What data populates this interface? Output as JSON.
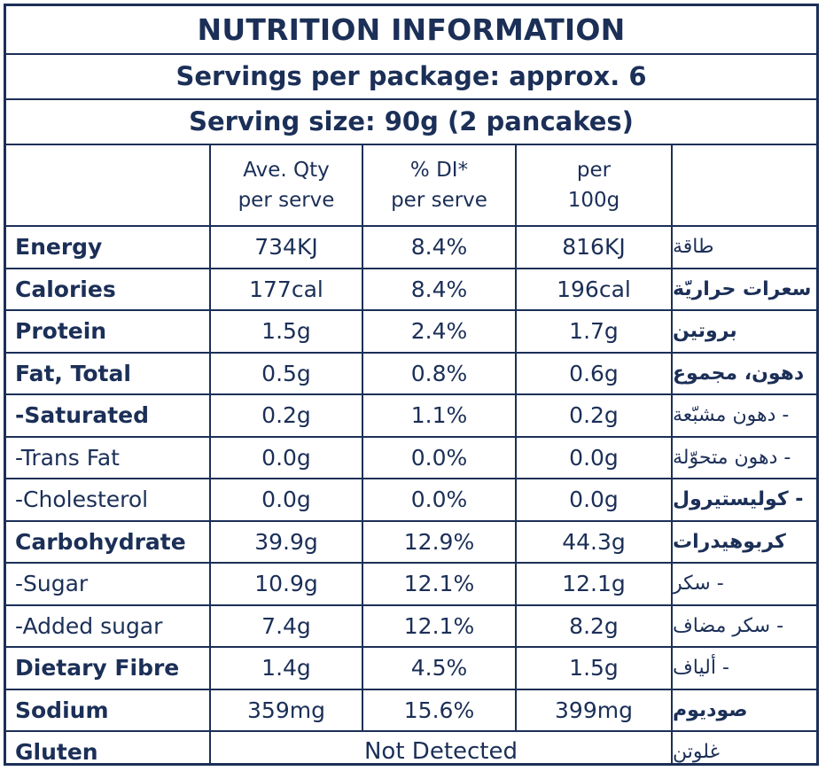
{
  "title": "NUTRITION INFORMATION",
  "servings_per_package": "Servings per package: approx. 6",
  "serving_size": "Serving size:  90g (2 pancakes)",
  "columns": {
    "ave_qty": [
      "Ave. Qty",
      "per serve"
    ],
    "di": [
      "% DI*",
      "per serve"
    ],
    "per100": [
      "per",
      "100g"
    ]
  },
  "rows": [
    {
      "name": "Energy",
      "bold": true,
      "qty": "734KJ",
      "di": "8.4%",
      "per100": "816KJ",
      "arabic": "طاقة",
      "ar_bold": false
    },
    {
      "name": "Calories",
      "bold": true,
      "qty": "177cal",
      "di": "8.4%",
      "per100": "196cal",
      "arabic": "سعرات حراريّة",
      "ar_bold": true
    },
    {
      "name": "Protein",
      "bold": true,
      "qty": "1.5g",
      "di": "2.4%",
      "per100": "1.7g",
      "arabic": "بروتين",
      "ar_bold": true
    },
    {
      "name": "Fat, Total",
      "bold": true,
      "qty": "0.5g",
      "di": "0.8%",
      "per100": "0.6g",
      "arabic": "دهون، مجموع",
      "ar_bold": true
    },
    {
      "name": "-Saturated",
      "bold": true,
      "qty": "0.2g",
      "di": "1.1%",
      "per100": "0.2g",
      "arabic": "- دهون مشبّعة",
      "ar_bold": false
    },
    {
      "name": "-Trans Fat",
      "bold": false,
      "qty": "0.0g",
      "di": "0.0%",
      "per100": "0.0g",
      "arabic": "- دهون متحوّلة",
      "ar_bold": false
    },
    {
      "name": "-Cholesterol",
      "bold": false,
      "qty": "0.0g",
      "di": "0.0%",
      "per100": "0.0g",
      "arabic": "- كوليستيرول",
      "ar_bold": true
    },
    {
      "name": "Carbohydrate",
      "bold": true,
      "qty": "39.9g",
      "di": "12.9%",
      "per100": "44.3g",
      "arabic": "كربوهيدرات",
      "ar_bold": true
    },
    {
      "name": "-Sugar",
      "bold": false,
      "qty": "10.9g",
      "di": "12.1%",
      "per100": "12.1g",
      "arabic": "- سكر",
      "ar_bold": false
    },
    {
      "name": "-Added sugar",
      "bold": false,
      "qty": "7.4g",
      "di": "12.1%",
      "per100": "8.2g",
      "arabic": "- سكر مضاف",
      "ar_bold": false
    },
    {
      "name": "Dietary Fibre",
      "bold": true,
      "qty": "1.4g",
      "di": "4.5%",
      "per100": "1.5g",
      "arabic": "- ألياف",
      "ar_bold": false
    },
    {
      "name": "Sodium",
      "bold": true,
      "qty": "359mg",
      "di": "15.6%",
      "per100": "399mg",
      "arabic": "صوديوم",
      "ar_bold": true
    }
  ],
  "gluten": {
    "name": "Gluten",
    "value": "Not Detected",
    "arabic": "غلوتن"
  },
  "colors": {
    "ink": "#1b2f57",
    "background": "#ffffff"
  }
}
